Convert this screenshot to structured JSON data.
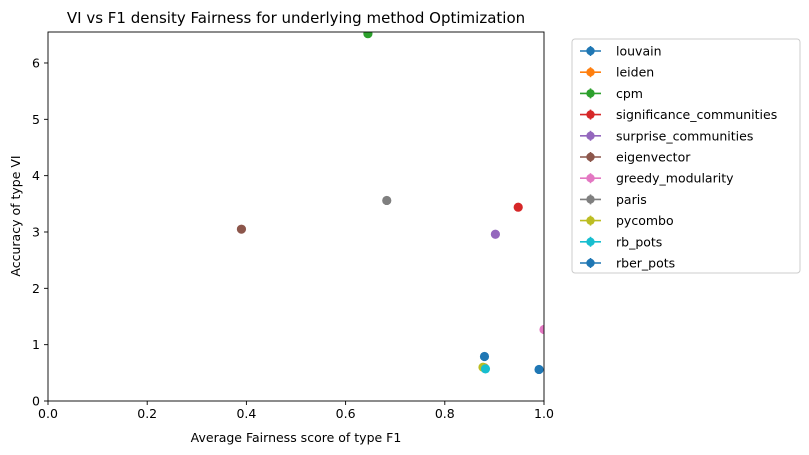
{
  "chart_data": {
    "type": "scatter",
    "title": "VI vs F1 density Fairness for underlying method Optimization",
    "xlabel": "Average Fairness score of type F1",
    "ylabel": "Accuracy of type VI",
    "xlim": [
      0,
      1.0
    ],
    "ylim": [
      0,
      6.55
    ],
    "x_ticks": [
      0,
      0.2,
      0.4,
      0.6,
      0.8,
      1.0
    ],
    "x_tick_labels": [
      "0.0",
      "0.2",
      "0.4",
      "0.6",
      "0.8",
      "1.0"
    ],
    "y_ticks": [
      0,
      1,
      2,
      3,
      4,
      5,
      6
    ],
    "y_tick_labels": [
      "0",
      "1",
      "2",
      "3",
      "4",
      "5",
      "6"
    ],
    "grid": false,
    "legend_position": "outside-right",
    "series": [
      {
        "name": "louvain",
        "color": "#1f77b4",
        "x": 0.88,
        "y": 0.79
      },
      {
        "name": "leiden",
        "color": "#ff7f0e",
        "x": 0.88,
        "y": 0.59
      },
      {
        "name": "cpm",
        "color": "#2ca02c",
        "x": 0.645,
        "y": 6.52
      },
      {
        "name": "significance_communities",
        "color": "#d62728",
        "x": 0.948,
        "y": 3.44
      },
      {
        "name": "surprise_communities",
        "color": "#9467bd",
        "x": 0.902,
        "y": 2.96
      },
      {
        "name": "eigenvector",
        "color": "#8c564b",
        "x": 0.39,
        "y": 3.05
      },
      {
        "name": "greedy_modularity",
        "color": "#e377c2",
        "x": 1.0,
        "y": 1.27
      },
      {
        "name": "paris",
        "color": "#7f7f7f",
        "x": 0.683,
        "y": 3.56
      },
      {
        "name": "pycombo",
        "color": "#bcbd22",
        "x": 0.877,
        "y": 0.6
      },
      {
        "name": "rb_pots",
        "color": "#17becf",
        "x": 0.882,
        "y": 0.57
      },
      {
        "name": "rber_pots",
        "color": "#1f77b4",
        "x": 0.99,
        "y": 0.56
      }
    ]
  }
}
